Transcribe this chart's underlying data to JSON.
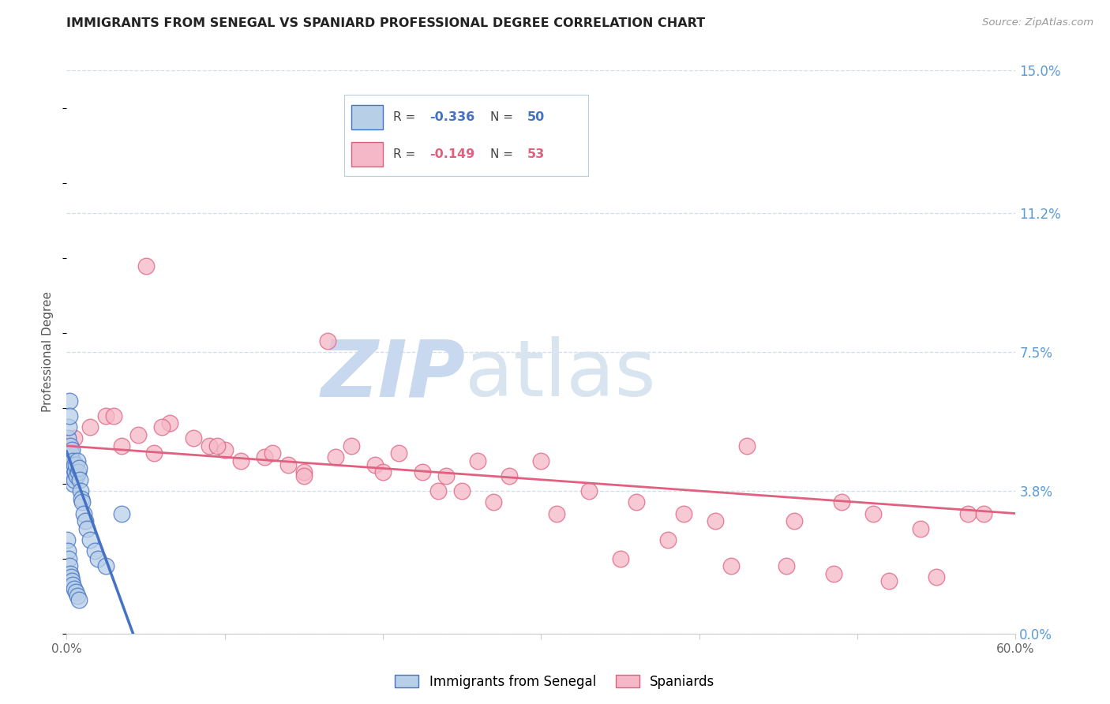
{
  "title": "IMMIGRANTS FROM SENEGAL VS SPANIARD PROFESSIONAL DEGREE CORRELATION CHART",
  "source": "Source: ZipAtlas.com",
  "ylabel": "Professional Degree",
  "right_ytick_labels": [
    "0.0%",
    "3.8%",
    "7.5%",
    "11.2%",
    "15.0%"
  ],
  "right_ytick_values": [
    0.0,
    3.8,
    7.5,
    11.2,
    15.0
  ],
  "xlim": [
    0.0,
    60.0
  ],
  "ylim": [
    0.0,
    15.0
  ],
  "xtick_values": [
    0,
    10,
    20,
    30,
    40,
    50,
    60
  ],
  "watermark_zip": "ZIP",
  "watermark_atlas": "atlas",
  "legend_entries": [
    {
      "label": "Immigrants from Senegal",
      "R": "-0.336",
      "N": "50"
    },
    {
      "label": "Spaniards",
      "R": "-0.149",
      "N": "53"
    }
  ],
  "blue_scatter_x": [
    0.05,
    0.05,
    0.1,
    0.1,
    0.15,
    0.15,
    0.2,
    0.2,
    0.25,
    0.25,
    0.3,
    0.3,
    0.35,
    0.35,
    0.4,
    0.4,
    0.45,
    0.45,
    0.5,
    0.5,
    0.55,
    0.6,
    0.65,
    0.7,
    0.75,
    0.8,
    0.85,
    0.9,
    0.95,
    1.0,
    1.1,
    1.2,
    1.3,
    1.5,
    1.8,
    2.0,
    2.5,
    0.05,
    0.1,
    0.15,
    0.2,
    0.25,
    0.3,
    0.35,
    0.4,
    0.5,
    0.6,
    0.7,
    0.8,
    3.5
  ],
  "blue_scatter_y": [
    4.5,
    4.2,
    5.2,
    4.8,
    5.5,
    4.6,
    6.2,
    5.8,
    5.0,
    4.7,
    4.8,
    4.3,
    4.9,
    4.5,
    4.6,
    4.2,
    4.4,
    4.0,
    4.5,
    4.1,
    4.3,
    4.5,
    4.2,
    4.6,
    4.3,
    4.4,
    4.1,
    3.8,
    3.6,
    3.5,
    3.2,
    3.0,
    2.8,
    2.5,
    2.2,
    2.0,
    1.8,
    2.5,
    2.2,
    2.0,
    1.8,
    1.6,
    1.5,
    1.4,
    1.3,
    1.2,
    1.1,
    1.0,
    0.9,
    3.2
  ],
  "pink_scatter_x": [
    0.5,
    1.5,
    2.5,
    3.5,
    4.5,
    5.5,
    6.5,
    8.0,
    9.0,
    10.0,
    11.0,
    12.5,
    14.0,
    15.0,
    16.5,
    18.0,
    19.5,
    21.0,
    22.5,
    24.0,
    26.0,
    28.0,
    30.0,
    33.0,
    36.0,
    39.0,
    41.0,
    43.0,
    46.0,
    49.0,
    51.0,
    54.0,
    57.0,
    3.0,
    6.0,
    9.5,
    13.0,
    17.0,
    20.0,
    23.5,
    27.0,
    31.0,
    35.0,
    38.0,
    42.0,
    45.5,
    48.5,
    52.0,
    55.0,
    58.0,
    5.0,
    15.0,
    25.0
  ],
  "pink_scatter_y": [
    5.2,
    5.5,
    5.8,
    5.0,
    5.3,
    4.8,
    5.6,
    5.2,
    5.0,
    4.9,
    4.6,
    4.7,
    4.5,
    4.3,
    7.8,
    5.0,
    4.5,
    4.8,
    4.3,
    4.2,
    4.6,
    4.2,
    4.6,
    3.8,
    3.5,
    3.2,
    3.0,
    5.0,
    3.0,
    3.5,
    3.2,
    2.8,
    3.2,
    5.8,
    5.5,
    5.0,
    4.8,
    4.7,
    4.3,
    3.8,
    3.5,
    3.2,
    2.0,
    2.5,
    1.8,
    1.8,
    1.6,
    1.4,
    1.5,
    3.2,
    9.8,
    4.2,
    3.8
  ],
  "blue_line_x": [
    0.0,
    4.2
  ],
  "blue_line_y": [
    4.85,
    0.0
  ],
  "pink_line_x": [
    0.0,
    60.0
  ],
  "pink_line_y": [
    5.0,
    3.2
  ],
  "blue_color": "#4472c4",
  "pink_color": "#e06080",
  "blue_scatter_facecolor": "#b8cfe8",
  "pink_scatter_facecolor": "#f5b8c8",
  "grid_color": "#c8d4e8",
  "background_color": "#ffffff",
  "title_color": "#222222",
  "right_axis_color": "#5b9bd5",
  "watermark_color_zip": "#c8d8ee",
  "watermark_color_atlas": "#d8e4f0"
}
